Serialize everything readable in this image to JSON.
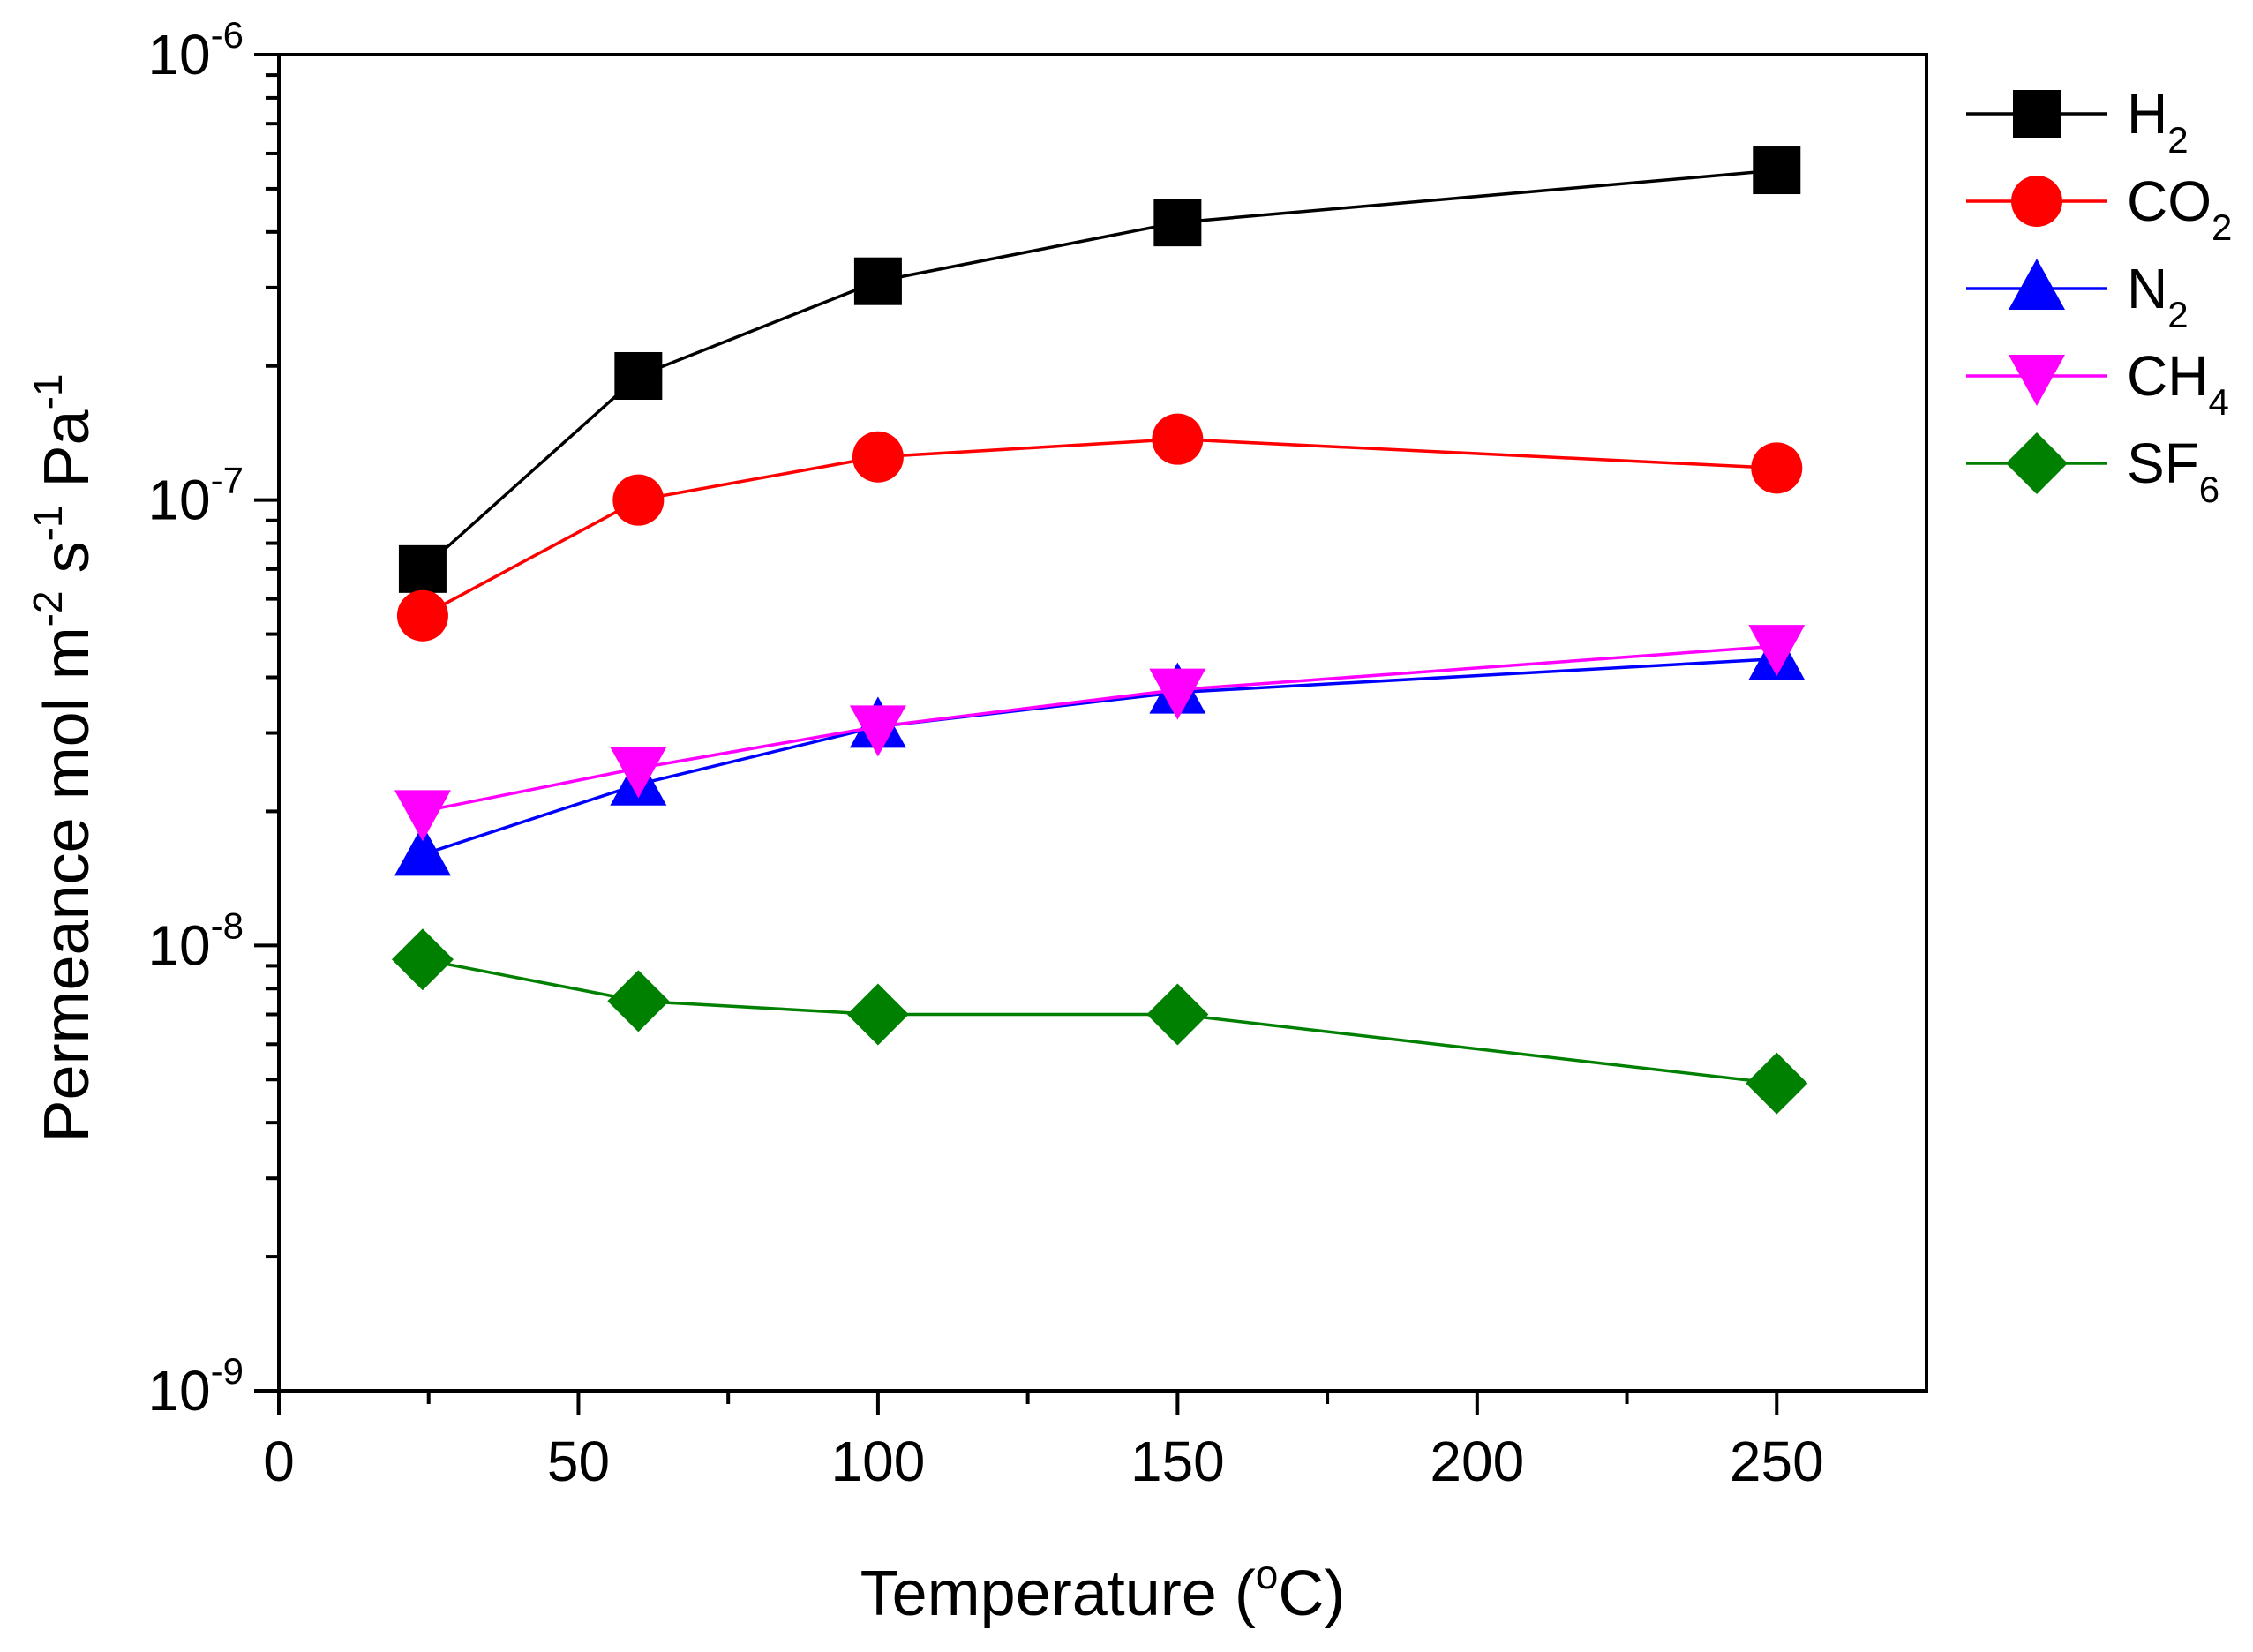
{
  "chart_data": {
    "type": "line",
    "title": "",
    "xlabel": "Temperature (°C)",
    "xlabel_parts": [
      "Temperature (",
      "o",
      "C)"
    ],
    "ylabel": "Permeance mol m⁻² s⁻¹ Pa⁻¹",
    "ylabel_parts": [
      "Permeance mol m",
      "-2",
      " s",
      "-1",
      " Pa",
      "-1"
    ],
    "x_scale": "linear",
    "y_scale": "log",
    "xlim": [
      0,
      275
    ],
    "ylim": [
      1e-09,
      1e-06
    ],
    "x_ticks": [
      0,
      50,
      100,
      150,
      200,
      250
    ],
    "x_tick_labels": [
      "0",
      "50",
      "100",
      "150",
      "200",
      "250"
    ],
    "y_ticks": [
      1e-09,
      1e-08,
      1e-07,
      1e-06
    ],
    "y_tick_labels": [
      {
        "base": "10",
        "exp": "-9"
      },
      {
        "base": "10",
        "exp": "-8"
      },
      {
        "base": "10",
        "exp": "-7"
      },
      {
        "base": "10",
        "exp": "-6"
      }
    ],
    "legend_position": "top-right, outside plot",
    "series": [
      {
        "name": "H2",
        "label": "H",
        "sub": "2",
        "color": "#000000",
        "marker": "square",
        "x": [
          24,
          60,
          100,
          150,
          250
        ],
        "y": [
          7e-08,
          1.9e-07,
          3.1e-07,
          4.2e-07,
          5.5e-07
        ]
      },
      {
        "name": "CO2",
        "label": "CO",
        "sub": "2",
        "color": "#ff0000",
        "marker": "circle",
        "x": [
          24,
          60,
          100,
          150,
          250
        ],
        "y": [
          5.5e-08,
          1e-07,
          1.25e-07,
          1.37e-07,
          1.18e-07
        ]
      },
      {
        "name": "N2",
        "label": "N",
        "sub": "2",
        "color": "#0000ff",
        "marker": "triangle-up",
        "x": [
          24,
          60,
          100,
          150,
          250
        ],
        "y": [
          1.6e-08,
          2.3e-08,
          3.1e-08,
          3.7e-08,
          4.4e-08
        ]
      },
      {
        "name": "CH4",
        "label": "CH",
        "sub": "4",
        "color": "#ff00ff",
        "marker": "triangle-down",
        "x": [
          24,
          60,
          100,
          150,
          250
        ],
        "y": [
          2e-08,
          2.5e-08,
          3.1e-08,
          3.75e-08,
          4.7e-08
        ]
      },
      {
        "name": "SF6",
        "label": "SF",
        "sub": "6",
        "color": "#008000",
        "marker": "diamond",
        "x": [
          24,
          60,
          100,
          150,
          250
        ],
        "y": [
          9.3e-09,
          7.5e-09,
          7e-09,
          7e-09,
          4.9e-09
        ]
      }
    ]
  }
}
